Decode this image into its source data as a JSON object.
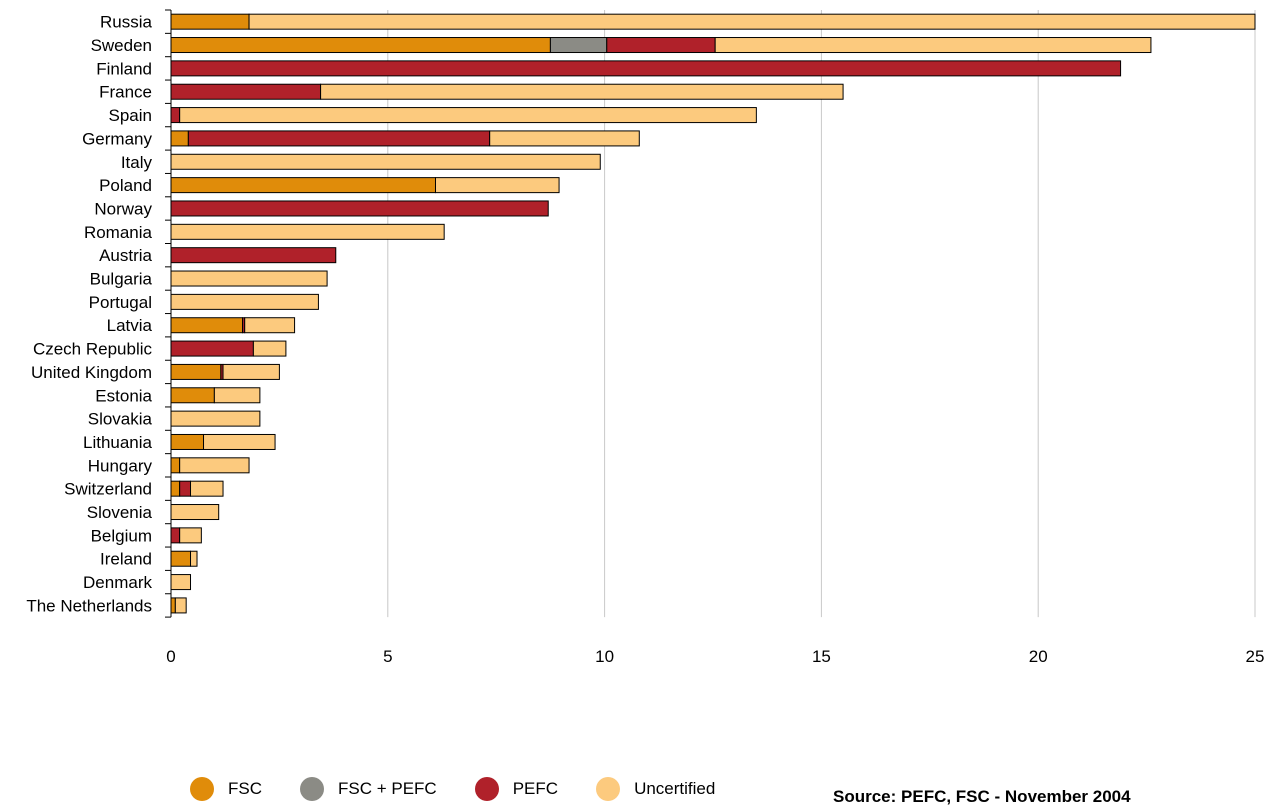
{
  "chart_data": {
    "type": "bar",
    "orientation": "horizontal",
    "stacked": true,
    "title": "",
    "xlabel": "",
    "ylabel": "",
    "xlim": [
      0,
      25
    ],
    "xticks": [
      0,
      5,
      10,
      15,
      20,
      25
    ],
    "grid": "vertical",
    "categories": [
      "Russia",
      "Sweden",
      "Finland",
      "France",
      "Spain",
      "Germany",
      "Italy",
      "Poland",
      "Norway",
      "Romania",
      "Austria",
      "Bulgaria",
      "Portugal",
      "Latvia",
      "Czech Republic",
      "United Kingdom",
      "Estonia",
      "Slovakia",
      "Lithuania",
      "Hungary",
      "Switzerland",
      "Slovenia",
      "Belgium",
      "Ireland",
      "Denmark",
      "The Netherlands"
    ],
    "series": [
      {
        "name": "FSC",
        "color": "#e08c0a",
        "values": [
          1.8,
          8.75,
          0,
          0,
          0,
          0.4,
          0,
          6.1,
          0,
          0,
          0,
          0,
          0,
          1.65,
          0,
          1.15,
          1.0,
          0,
          0.75,
          0.2,
          0.2,
          0,
          0,
          0.45,
          0,
          0.1
        ]
      },
      {
        "name": "FSC + PEFC",
        "color": "#8b8b85",
        "values": [
          0,
          1.3,
          0,
          0,
          0,
          0,
          0,
          0,
          0,
          0,
          0,
          0,
          0,
          0,
          0,
          0,
          0,
          0,
          0,
          0,
          0,
          0,
          0,
          0,
          0,
          0
        ]
      },
      {
        "name": "PEFC",
        "color": "#b0212a",
        "values": [
          0,
          2.5,
          21.9,
          3.45,
          0.2,
          6.95,
          0,
          0,
          8.7,
          0,
          3.8,
          0,
          0,
          0.05,
          1.9,
          0.05,
          0,
          0,
          0,
          0,
          0.25,
          0,
          0.2,
          0,
          0,
          0
        ]
      },
      {
        "name": "Uncertified",
        "color": "#fcca7e",
        "values": [
          23.2,
          10.05,
          0,
          12.05,
          13.3,
          3.45,
          9.9,
          2.85,
          0,
          6.3,
          0,
          3.6,
          3.4,
          1.15,
          0.75,
          1.3,
          1.05,
          2.05,
          1.65,
          1.6,
          0.75,
          1.1,
          0.5,
          0.15,
          0.45,
          0.25
        ]
      }
    ]
  },
  "legend": {
    "items": [
      {
        "label": "FSC",
        "color": "#e08c0a"
      },
      {
        "label": "FSC + PEFC",
        "color": "#8b8b85"
      },
      {
        "label": "PEFC",
        "color": "#b0212a"
      },
      {
        "label": "Uncertified",
        "color": "#fcca7e"
      }
    ]
  },
  "source": "Source: PEFC, FSC - November 2004"
}
